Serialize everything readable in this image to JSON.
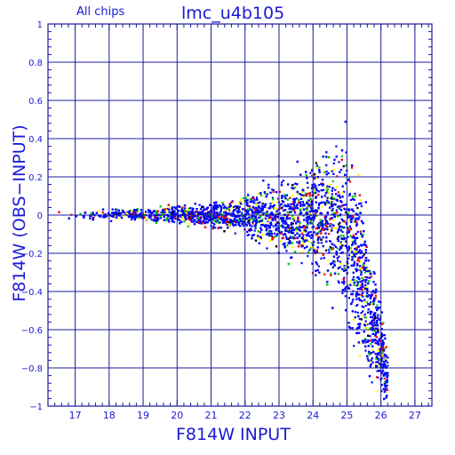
{
  "chart_data": {
    "type": "scatter",
    "subtitle": "All chips",
    "title": "lmc_u4b105",
    "xlabel": "F814W INPUT",
    "ylabel": "F814W (OBS−INPUT)",
    "xlim": [
      16.2,
      27.5
    ],
    "ylim": [
      -1,
      1
    ],
    "x_ticks": [
      17,
      18,
      19,
      20,
      21,
      22,
      23,
      24,
      25,
      26,
      27
    ],
    "y_ticks": [
      1,
      0.8,
      0.6,
      0.4,
      0.2,
      0,
      -0.2,
      -0.4,
      -0.6,
      -0.8,
      -1
    ],
    "y_tick_labels": [
      "1",
      "0.8",
      "0.6",
      "0.4",
      "0.2",
      "0",
      "−0.2",
      "−0.4",
      "−0.6",
      "−0.8",
      "−1"
    ],
    "grid": true,
    "series_colors": [
      "#0000ff",
      "#00cc00",
      "#ff0000",
      "#ffff00",
      "#000000"
    ],
    "series": [
      {
        "color": "#0000ff",
        "envelope": {
          "x": [
            16.3,
            17.0,
            18.0,
            19.0,
            20.0,
            21.0,
            22.0,
            22.5,
            23.0,
            23.5,
            24.0,
            24.5,
            24.9,
            25.1,
            25.3,
            25.5,
            25.7,
            26.0,
            26.2
          ],
          "y_upper": [
            0.02,
            0.02,
            0.03,
            0.035,
            0.05,
            0.07,
            0.1,
            0.14,
            0.18,
            0.23,
            0.3,
            0.36,
            0.39,
            0.3,
            0.18,
            0.05,
            -0.1,
            -0.45,
            -0.7
          ],
          "y_lower": [
            -0.02,
            -0.02,
            -0.03,
            -0.035,
            -0.05,
            -0.07,
            -0.11,
            -0.15,
            -0.2,
            -0.25,
            -0.3,
            -0.4,
            -0.5,
            -0.6,
            -0.7,
            -0.8,
            -0.88,
            -0.95,
            -0.99
          ]
        }
      }
    ]
  }
}
